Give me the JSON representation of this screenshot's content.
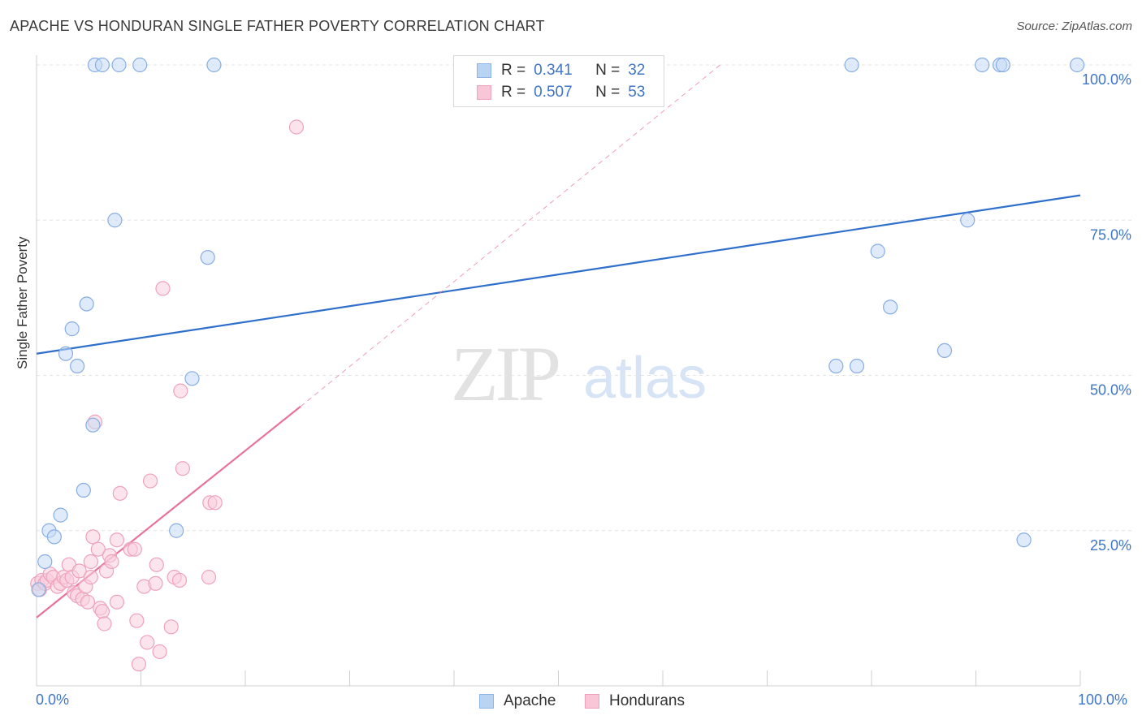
{
  "header": {
    "title": "APACHE VS HONDURAN SINGLE FATHER POVERTY CORRELATION CHART",
    "source": "Source: ZipAtlas.com"
  },
  "watermark": {
    "zip": "ZIP",
    "atlas": "atlas"
  },
  "legend": {
    "apache": {
      "r_label": "R =",
      "r_value": "0.341",
      "n_label": "N =",
      "n_value": "32"
    },
    "hondurans": {
      "r_label": "R =",
      "r_value": "0.507",
      "n_label": "N =",
      "n_value": "53"
    }
  },
  "bottom_legend": {
    "apache": "Apache",
    "hondurans": "Hondurans"
  },
  "chart_data": {
    "type": "scatter",
    "title": "APACHE VS HONDURAN SINGLE FATHER POVERTY CORRELATION CHART",
    "xlabel": "",
    "ylabel": "Single Father Poverty",
    "xlim": [
      0,
      100
    ],
    "ylim": [
      0,
      100
    ],
    "x_tick_labels": [
      "0.0%",
      "100.0%"
    ],
    "y_tick_labels": [
      "25.0%",
      "50.0%",
      "75.0%",
      "100.0%"
    ],
    "y_ticks": [
      25,
      50,
      75,
      100
    ],
    "grid": true,
    "legend_position": "top-center",
    "colors": {
      "apache": "#9ec4ef",
      "apache_line": "#2f6fcc",
      "hondurans": "#f5b3c8",
      "hondurans_line": "#e8739a"
    },
    "series": [
      {
        "name": "Apache",
        "points": [
          [
            0.2,
            15.5
          ],
          [
            0.8,
            20.0
          ],
          [
            1.2,
            25.0
          ],
          [
            1.7,
            24.0
          ],
          [
            2.3,
            27.5
          ],
          [
            2.8,
            53.5
          ],
          [
            3.4,
            57.5
          ],
          [
            3.9,
            51.5
          ],
          [
            4.5,
            31.5
          ],
          [
            4.8,
            61.5
          ],
          [
            5.4,
            42.0
          ],
          [
            5.6,
            100
          ],
          [
            6.3,
            100
          ],
          [
            7.5,
            75.0
          ],
          [
            7.9,
            100
          ],
          [
            9.9,
            100
          ],
          [
            13.4,
            25.0
          ],
          [
            14.9,
            49.5
          ],
          [
            16.4,
            69.0
          ],
          [
            17.0,
            100
          ],
          [
            76.6,
            51.5
          ],
          [
            78.1,
            100
          ],
          [
            78.6,
            51.5
          ],
          [
            80.6,
            70.0
          ],
          [
            81.8,
            61.0
          ],
          [
            87.0,
            54.0
          ],
          [
            89.2,
            75.0
          ],
          [
            90.6,
            100
          ],
          [
            92.3,
            100
          ],
          [
            92.6,
            100
          ],
          [
            94.6,
            23.5
          ],
          [
            99.7,
            100
          ]
        ]
      },
      {
        "name": "Hondurans",
        "points": [
          [
            0.1,
            16.5
          ],
          [
            0.3,
            15.5
          ],
          [
            0.5,
            17.0
          ],
          [
            0.8,
            16.5
          ],
          [
            1.0,
            17.0
          ],
          [
            1.3,
            18.0
          ],
          [
            1.6,
            17.5
          ],
          [
            2.0,
            16.0
          ],
          [
            2.3,
            16.5
          ],
          [
            2.6,
            17.5
          ],
          [
            2.9,
            17.0
          ],
          [
            3.1,
            19.5
          ],
          [
            3.4,
            17.5
          ],
          [
            3.6,
            15.0
          ],
          [
            3.9,
            14.5
          ],
          [
            4.1,
            18.5
          ],
          [
            4.4,
            14.0
          ],
          [
            4.7,
            16.0
          ],
          [
            4.9,
            13.5
          ],
          [
            5.2,
            17.5
          ],
          [
            5.2,
            20.0
          ],
          [
            5.4,
            24.0
          ],
          [
            5.6,
            42.5
          ],
          [
            5.9,
            22.0
          ],
          [
            6.1,
            12.5
          ],
          [
            6.3,
            12.0
          ],
          [
            6.5,
            10.0
          ],
          [
            6.7,
            18.5
          ],
          [
            7.0,
            21.0
          ],
          [
            7.2,
            20.0
          ],
          [
            7.7,
            23.5
          ],
          [
            7.7,
            13.5
          ],
          [
            8.0,
            31.0
          ],
          [
            9.0,
            22.0
          ],
          [
            9.4,
            22.0
          ],
          [
            9.6,
            10.5
          ],
          [
            9.8,
            3.5
          ],
          [
            10.3,
            16.0
          ],
          [
            10.6,
            7.0
          ],
          [
            10.9,
            33.0
          ],
          [
            11.5,
            19.5
          ],
          [
            11.4,
            16.5
          ],
          [
            11.8,
            5.5
          ],
          [
            12.1,
            64.0
          ],
          [
            12.9,
            9.5
          ],
          [
            13.2,
            17.5
          ],
          [
            13.7,
            17.0
          ],
          [
            13.8,
            47.5
          ],
          [
            14.0,
            35.0
          ],
          [
            16.5,
            17.5
          ],
          [
            16.6,
            29.5
          ],
          [
            17.1,
            29.5
          ],
          [
            24.9,
            90.0
          ]
        ]
      }
    ],
    "trendlines": [
      {
        "series": "Apache",
        "x": [
          0,
          100
        ],
        "y": [
          53.5,
          79.0
        ],
        "style": "solid"
      },
      {
        "series": "Hondurans",
        "x": [
          0,
          25.3
        ],
        "y": [
          11.0,
          45.0
        ],
        "style": "solid"
      },
      {
        "series": "Hondurans",
        "x": [
          25.3,
          65.5
        ],
        "y": [
          45.0,
          100
        ],
        "style": "dashed"
      }
    ]
  }
}
